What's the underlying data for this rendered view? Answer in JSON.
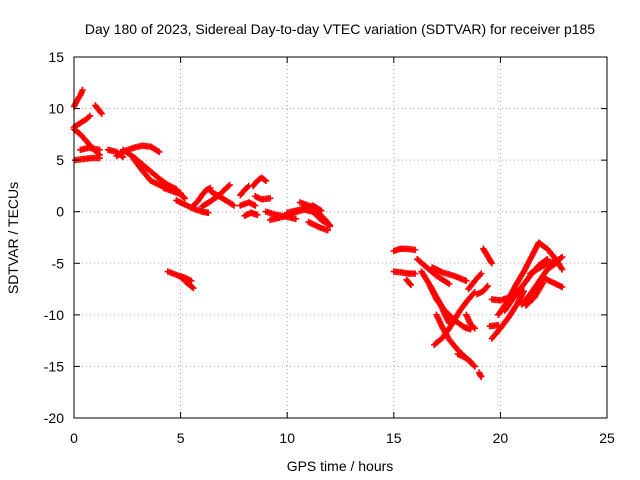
{
  "chart_data": {
    "type": "scatter",
    "title": "Day 180 of 2023, Sidereal Day-to-day VTEC variation (SDTVAR) for receiver p185",
    "xlabel": "GPS time / hours",
    "ylabel": "SDTVAR / TECUs",
    "xlim": [
      0,
      25
    ],
    "ylim": [
      -20,
      15
    ],
    "xticks": [
      0,
      5,
      10,
      15,
      20,
      25
    ],
    "yticks": [
      15,
      10,
      5,
      0,
      -5,
      -10,
      -15,
      -20
    ],
    "xtick_labels": [
      "0",
      "5",
      "10",
      "15",
      "20",
      "25"
    ],
    "ytick_labels": [
      "15",
      "10",
      "5",
      "0",
      "-5",
      "-10",
      "-15",
      "-20"
    ],
    "grid": true,
    "marker": "plus",
    "marker_color": "#ff0000",
    "series": [
      {
        "tracks": [
          [
            [
              0.0,
              10.2
            ],
            [
              0.15,
              10.8
            ],
            [
              0.3,
              11.3
            ],
            [
              0.4,
              11.8
            ]
          ],
          [
            [
              1.0,
              10.3
            ],
            [
              1.15,
              9.9
            ],
            [
              1.3,
              9.5
            ]
          ],
          [
            [
              0.0,
              8.2
            ],
            [
              0.3,
              8.6
            ],
            [
              0.6,
              9.0
            ],
            [
              0.75,
              9.3
            ]
          ],
          [
            [
              0.0,
              8.0
            ],
            [
              0.3,
              7.5
            ],
            [
              0.6,
              6.8
            ],
            [
              0.9,
              6.1
            ],
            [
              1.2,
              5.5
            ]
          ],
          [
            [
              0.05,
              5.0
            ],
            [
              0.4,
              5.1
            ],
            [
              0.8,
              5.2
            ],
            [
              1.2,
              5.2
            ]
          ],
          [
            [
              0.3,
              6.0
            ],
            [
              0.7,
              6.2
            ],
            [
              1.2,
              6.0
            ]
          ],
          [
            [
              1.6,
              6.0
            ],
            [
              2.0,
              5.8
            ],
            [
              2.3,
              5.3
            ]
          ],
          [
            [
              2.0,
              5.4
            ],
            [
              2.4,
              5.9
            ],
            [
              2.8,
              6.2
            ],
            [
              3.2,
              6.4
            ],
            [
              3.6,
              6.3
            ],
            [
              4.0,
              5.8
            ]
          ],
          [
            [
              2.3,
              6.0
            ],
            [
              2.8,
              5.3
            ],
            [
              3.2,
              4.6
            ],
            [
              3.6,
              3.9
            ],
            [
              4.0,
              3.2
            ],
            [
              4.4,
              2.6
            ],
            [
              4.8,
              2.2
            ]
          ],
          [
            [
              2.8,
              5.1
            ],
            [
              3.2,
              4.0
            ],
            [
              3.6,
              3.0
            ],
            [
              4.0,
              2.6
            ],
            [
              4.4,
              2.3
            ],
            [
              5.0,
              1.8
            ]
          ],
          [
            [
              4.2,
              2.3
            ],
            [
              4.6,
              2.0
            ],
            [
              5.0,
              1.7
            ],
            [
              5.2,
              1.3
            ]
          ],
          [
            [
              4.8,
              1.1
            ],
            [
              5.2,
              0.7
            ],
            [
              5.6,
              0.3
            ],
            [
              6.0,
              0.0
            ],
            [
              6.3,
              -0.1
            ]
          ],
          [
            [
              5.5,
              0.4
            ],
            [
              5.8,
              1.0
            ],
            [
              6.0,
              1.6
            ],
            [
              6.2,
              2.1
            ],
            [
              6.4,
              2.3
            ]
          ],
          [
            [
              6.0,
              0.5
            ],
            [
              6.4,
              1.0
            ],
            [
              6.8,
              1.6
            ],
            [
              7.1,
              2.2
            ],
            [
              7.3,
              2.6
            ]
          ],
          [
            [
              6.4,
              2.0
            ],
            [
              6.8,
              1.5
            ],
            [
              7.2,
              1.0
            ],
            [
              7.5,
              0.6
            ]
          ],
          [
            [
              4.4,
              -5.8
            ],
            [
              4.9,
              -6.2
            ],
            [
              5.2,
              -6.4
            ],
            [
              5.5,
              -6.7
            ]
          ],
          [
            [
              5.0,
              -6.3
            ],
            [
              5.3,
              -6.9
            ],
            [
              5.6,
              -7.4
            ]
          ],
          [
            [
              7.8,
              1.6
            ],
            [
              8.0,
              2.1
            ],
            [
              8.2,
              2.5
            ]
          ],
          [
            [
              7.8,
              0.6
            ],
            [
              8.2,
              0.9
            ],
            [
              8.5,
              0.6
            ]
          ],
          [
            [
              8.4,
              2.5
            ],
            [
              8.6,
              3.0
            ],
            [
              8.8,
              3.3
            ],
            [
              9.0,
              3.0
            ]
          ],
          [
            [
              8.5,
              1.5
            ],
            [
              8.8,
              1.2
            ],
            [
              9.2,
              1.3
            ]
          ],
          [
            [
              8.3,
              -0.1
            ],
            [
              8.6,
              -0.3
            ]
          ],
          [
            [
              9.0,
              0.0
            ],
            [
              9.5,
              -0.3
            ],
            [
              10.0,
              -0.5
            ],
            [
              10.4,
              -0.7
            ]
          ],
          [
            [
              9.2,
              -0.8
            ],
            [
              9.8,
              -0.5
            ],
            [
              10.3,
              -0.1
            ],
            [
              10.8,
              0.2
            ],
            [
              11.2,
              0.0
            ],
            [
              11.6,
              -0.8
            ],
            [
              12.0,
              -1.3
            ]
          ],
          [
            [
              10.0,
              -0.1
            ],
            [
              10.4,
              0.1
            ],
            [
              10.8,
              0.3
            ],
            [
              11.2,
              0.6
            ],
            [
              11.6,
              0.1
            ]
          ],
          [
            [
              10.6,
              0.9
            ],
            [
              11.0,
              0.6
            ],
            [
              11.4,
              0.0
            ],
            [
              11.8,
              -0.8
            ],
            [
              12.0,
              -1.4
            ]
          ],
          [
            [
              11.0,
              -1.0
            ],
            [
              11.5,
              -1.5
            ],
            [
              11.9,
              -1.8
            ]
          ],
          [
            [
              8.0,
              -0.4
            ],
            [
              8.3,
              -0.1
            ]
          ],
          [
            [
              15.0,
              -3.8
            ],
            [
              15.3,
              -3.6
            ],
            [
              15.6,
              -3.6
            ],
            [
              16.0,
              -3.7
            ]
          ],
          [
            [
              15.0,
              -5.8
            ],
            [
              15.4,
              -5.9
            ],
            [
              15.7,
              -6.0
            ],
            [
              16.0,
              -6.0
            ]
          ],
          [
            [
              15.6,
              -6.6
            ],
            [
              15.8,
              -7.1
            ]
          ],
          [
            [
              16.1,
              -4.6
            ],
            [
              16.6,
              -5.5
            ],
            [
              17.0,
              -6.2
            ],
            [
              17.6,
              -7.0
            ]
          ],
          [
            [
              16.8,
              -5.4
            ],
            [
              17.3,
              -5.9
            ],
            [
              17.8,
              -6.2
            ],
            [
              18.4,
              -6.7
            ]
          ],
          [
            [
              16.3,
              -5.8
            ],
            [
              16.6,
              -6.8
            ],
            [
              16.9,
              -7.9
            ],
            [
              17.2,
              -9.0
            ],
            [
              17.4,
              -10.0
            ],
            [
              17.6,
              -10.8
            ]
          ],
          [
            [
              16.7,
              -7.2
            ],
            [
              17.0,
              -8.5
            ],
            [
              17.4,
              -9.6
            ],
            [
              17.9,
              -10.6
            ],
            [
              18.3,
              -11.2
            ],
            [
              18.6,
              -11.4
            ]
          ],
          [
            [
              17.0,
              -10.0
            ],
            [
              17.3,
              -11.3
            ],
            [
              17.6,
              -12.4
            ],
            [
              18.0,
              -13.4
            ],
            [
              18.4,
              -14.2
            ],
            [
              18.8,
              -15.0
            ]
          ],
          [
            [
              16.9,
              -12.9
            ],
            [
              17.3,
              -12.2
            ],
            [
              17.7,
              -11.0
            ],
            [
              18.1,
              -9.6
            ],
            [
              18.5,
              -8.5
            ],
            [
              18.8,
              -7.8
            ]
          ],
          [
            [
              18.9,
              -8.0
            ],
            [
              19.2,
              -7.7
            ],
            [
              19.4,
              -7.2
            ]
          ],
          [
            [
              18.5,
              -7.5
            ],
            [
              18.8,
              -6.7
            ],
            [
              19.1,
              -6.0
            ]
          ],
          [
            [
              19.2,
              -3.6
            ],
            [
              19.4,
              -4.3
            ],
            [
              19.6,
              -5.0
            ]
          ],
          [
            [
              18.4,
              -10.0
            ],
            [
              18.6,
              -10.9
            ],
            [
              18.8,
              -11.3
            ]
          ],
          [
            [
              18.0,
              -13.8
            ],
            [
              18.3,
              -14.1
            ],
            [
              18.6,
              -14.5
            ]
          ],
          [
            [
              19.6,
              -8.5
            ],
            [
              20.0,
              -8.6
            ],
            [
              20.4,
              -8.3
            ],
            [
              20.8,
              -7.6
            ]
          ],
          [
            [
              19.6,
              -12.3
            ],
            [
              20.0,
              -11.3
            ],
            [
              20.4,
              -10.2
            ],
            [
              20.8,
              -8.9
            ],
            [
              21.1,
              -7.7
            ]
          ],
          [
            [
              19.9,
              -10.0
            ],
            [
              20.3,
              -8.8
            ],
            [
              20.7,
              -7.2
            ],
            [
              21.1,
              -5.8
            ],
            [
              21.5,
              -4.2
            ],
            [
              21.8,
              -3.0
            ]
          ],
          [
            [
              20.2,
              -9.6
            ],
            [
              20.6,
              -8.4
            ],
            [
              21.0,
              -7.3
            ],
            [
              21.4,
              -6.2
            ],
            [
              21.8,
              -5.2
            ],
            [
              22.2,
              -4.6
            ]
          ],
          [
            [
              21.0,
              -9.0
            ],
            [
              21.4,
              -8.0
            ],
            [
              21.8,
              -6.8
            ],
            [
              22.2,
              -5.6
            ],
            [
              22.6,
              -5.0
            ]
          ],
          [
            [
              21.4,
              -6.0
            ],
            [
              21.8,
              -5.5
            ],
            [
              22.2,
              -5.0
            ],
            [
              22.6,
              -4.8
            ],
            [
              22.9,
              -4.4
            ]
          ],
          [
            [
              21.8,
              -3.0
            ],
            [
              22.2,
              -3.6
            ],
            [
              22.6,
              -4.6
            ],
            [
              22.9,
              -5.6
            ]
          ],
          [
            [
              22.0,
              -6.4
            ],
            [
              22.4,
              -6.8
            ],
            [
              22.9,
              -7.3
            ]
          ],
          [
            [
              21.2,
              -9.1
            ],
            [
              21.6,
              -8.3
            ],
            [
              22.0,
              -6.9
            ]
          ],
          [
            [
              19.5,
              -11.1
            ],
            [
              19.9,
              -11.0
            ]
          ],
          [
            [
              19.0,
              -15.6
            ],
            [
              19.1,
              -16.0
            ]
          ]
        ]
      }
    ]
  }
}
